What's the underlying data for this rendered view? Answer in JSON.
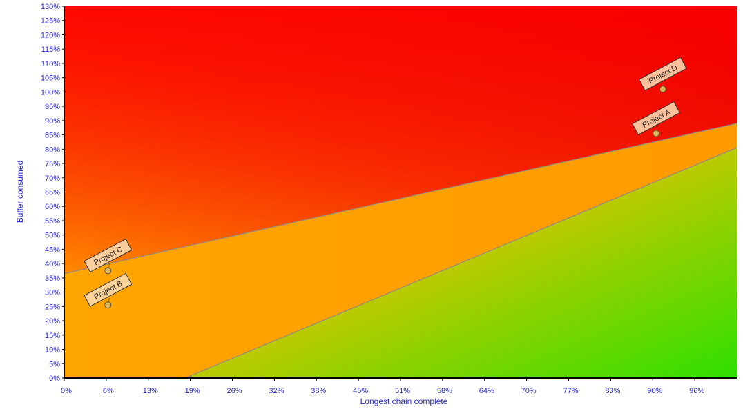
{
  "chart_data": {
    "type": "scatter",
    "title": "",
    "xlabel": "Longest chain complete",
    "ylabel": "Buffer consumed",
    "x_ticks": [
      "0%",
      "6%",
      "13%",
      "19%",
      "26%",
      "32%",
      "38%",
      "45%",
      "51%",
      "58%",
      "64%",
      "70%",
      "77%",
      "83%",
      "90%",
      "96%"
    ],
    "y_ticks": [
      "0%",
      "5%",
      "10%",
      "15%",
      "20%",
      "25%",
      "30%",
      "35%",
      "40%",
      "45%",
      "50%",
      "55%",
      "60%",
      "65%",
      "70%",
      "75%",
      "80%",
      "85%",
      "90%",
      "95%",
      "100%",
      "105%",
      "110%",
      "115%",
      "120%",
      "125%",
      "130%"
    ],
    "xlim": [
      0,
      100
    ],
    "ylim": [
      0,
      130
    ],
    "grid": false,
    "background_zones": {
      "colors": {
        "red": "#ff0000",
        "orange": "#ffa500",
        "green": "#33dd00"
      },
      "upper_boundary": {
        "points": [
          [
            0,
            36.5
          ],
          [
            100,
            89
          ]
        ]
      },
      "lower_boundary": {
        "points": [
          [
            18,
            0
          ],
          [
            100,
            80.5
          ]
        ]
      }
    },
    "points": [
      {
        "name": "Project A",
        "x": 88,
        "y": 85.5
      },
      {
        "name": "Project B",
        "x": 6.5,
        "y": 25.5
      },
      {
        "name": "Project C",
        "x": 6.5,
        "y": 37.5
      },
      {
        "name": "Project D",
        "x": 89,
        "y": 101
      }
    ]
  }
}
